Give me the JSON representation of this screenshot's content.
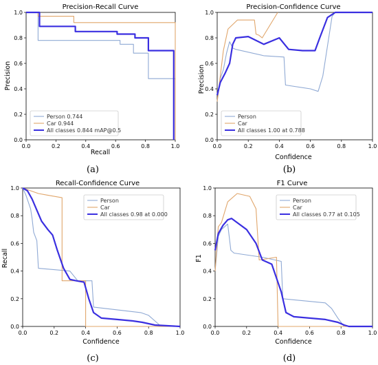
{
  "colors": {
    "person": "#8fa9d4",
    "car": "#e0a56a",
    "all": "#3a2fe0"
  },
  "chart_data": [
    {
      "type": "line",
      "title": "Precision-Recall Curve",
      "xlabel": "Recall",
      "ylabel": "Precision",
      "caption": "(a)",
      "xlim": [
        0,
        1
      ],
      "ylim": [
        0,
        1
      ],
      "xticks": [
        "0.0",
        "0.2",
        "0.4",
        "0.6",
        "0.8",
        "1.0"
      ],
      "yticks": [
        "0.0",
        "0.2",
        "0.4",
        "0.6",
        "0.8",
        "1.0"
      ],
      "legend_position": "bottom-left",
      "series": [
        {
          "name": "Person 0.744",
          "key": "person",
          "x": [
            0,
            0.08,
            0.08,
            0.33,
            0.33,
            0.63,
            0.63,
            0.72,
            0.72,
            0.82,
            0.82,
            1.0,
            1.0
          ],
          "y": [
            1.0,
            1.0,
            0.78,
            0.78,
            0.78,
            0.78,
            0.75,
            0.75,
            0.68,
            0.68,
            0.48,
            0.48,
            0.0
          ]
        },
        {
          "name": "Car 0.944",
          "key": "car",
          "x": [
            0,
            0.08,
            0.08,
            0.32,
            0.32,
            1.0,
            1.0
          ],
          "y": [
            1.0,
            1.0,
            0.97,
            0.97,
            0.92,
            0.92,
            0.0
          ]
        },
        {
          "name": "All classes 0.844 mAP@0.5",
          "key": "all",
          "x": [
            0,
            0.09,
            0.09,
            0.33,
            0.33,
            0.61,
            0.61,
            0.73,
            0.73,
            0.82,
            0.82,
            0.99,
            0.99
          ],
          "y": [
            1.0,
            1.0,
            0.89,
            0.89,
            0.85,
            0.85,
            0.83,
            0.83,
            0.8,
            0.8,
            0.7,
            0.7,
            0.0
          ]
        }
      ]
    },
    {
      "type": "line",
      "title": "Precision-Confidence Curve",
      "xlabel": "Confidence",
      "ylabel": "Precision",
      "caption": "(b)",
      "xlim": [
        0,
        1
      ],
      "ylim": [
        0,
        1
      ],
      "xticks": [
        "0.0",
        "0.2",
        "0.4",
        "0.6",
        "0.8",
        "1.0"
      ],
      "yticks": [
        "0.0",
        "0.2",
        "0.4",
        "0.6",
        "0.8",
        "1.0"
      ],
      "legend_position": "bottom-left",
      "series": [
        {
          "name": "Person",
          "key": "person",
          "x": [
            0,
            0.02,
            0.04,
            0.06,
            0.08,
            0.1,
            0.12,
            0.3,
            0.43,
            0.44,
            0.6,
            0.65,
            0.68,
            0.74,
            0.76,
            1.0
          ],
          "y": [
            0.3,
            0.48,
            0.55,
            0.68,
            0.77,
            0.72,
            0.71,
            0.66,
            0.65,
            0.43,
            0.4,
            0.38,
            0.5,
            0.97,
            1.0,
            1.0
          ]
        },
        {
          "name": "Car",
          "key": "car",
          "x": [
            0,
            0.02,
            0.04,
            0.07,
            0.13,
            0.24,
            0.25,
            0.27,
            0.29,
            0.39
          ],
          "y": [
            0.3,
            0.5,
            0.7,
            0.87,
            0.94,
            0.94,
            0.83,
            0.82,
            0.8,
            1.0
          ]
        },
        {
          "name": "All classes 1.00 at 0.788",
          "key": "all",
          "x": [
            0,
            0.02,
            0.05,
            0.08,
            0.1,
            0.12,
            0.2,
            0.3,
            0.4,
            0.46,
            0.55,
            0.63,
            0.66,
            0.71,
            0.76,
            0.8,
            1.0
          ],
          "y": [
            0.35,
            0.45,
            0.52,
            0.6,
            0.75,
            0.8,
            0.81,
            0.75,
            0.8,
            0.71,
            0.7,
            0.7,
            0.8,
            0.96,
            1.0,
            1.0,
            1.0
          ]
        }
      ]
    },
    {
      "type": "line",
      "title": "Recall-Confidence Curve",
      "xlabel": "Confidence",
      "ylabel": "Recall",
      "caption": "(c)",
      "xlim": [
        0,
        1
      ],
      "ylim": [
        0,
        1
      ],
      "xticks": [
        "0.0",
        "0.2",
        "0.4",
        "0.6",
        "0.8",
        "1.0"
      ],
      "yticks": [
        "0.0",
        "0.2",
        "0.4",
        "0.6",
        "0.8",
        "1.0"
      ],
      "legend_position": "top-right",
      "series": [
        {
          "name": "Person",
          "key": "person",
          "x": [
            0,
            0.02,
            0.05,
            0.06,
            0.07,
            0.09,
            0.1,
            0.3,
            0.35,
            0.44,
            0.45,
            0.75,
            0.8,
            0.84,
            0.88,
            1.0
          ],
          "y": [
            1.0,
            0.95,
            0.85,
            0.78,
            0.68,
            0.62,
            0.42,
            0.4,
            0.33,
            0.33,
            0.14,
            0.1,
            0.08,
            0.04,
            0.0,
            0.0
          ]
        },
        {
          "name": "Car",
          "key": "car",
          "x": [
            0,
            0.05,
            0.1,
            0.15,
            0.2,
            0.25,
            0.25,
            0.4,
            0.4,
            1.0
          ],
          "y": [
            1.0,
            0.98,
            0.96,
            0.95,
            0.94,
            0.93,
            0.33,
            0.33,
            0.0,
            0.0
          ]
        },
        {
          "name": "All classes 0.98 at 0.000",
          "key": "all",
          "x": [
            0,
            0.03,
            0.06,
            0.09,
            0.12,
            0.16,
            0.19,
            0.22,
            0.26,
            0.3,
            0.34,
            0.39,
            0.42,
            0.45,
            0.5,
            0.6,
            0.7,
            0.76,
            0.8,
            0.84,
            1.0
          ],
          "y": [
            1.0,
            0.98,
            0.92,
            0.84,
            0.76,
            0.7,
            0.66,
            0.55,
            0.42,
            0.34,
            0.33,
            0.32,
            0.2,
            0.1,
            0.06,
            0.05,
            0.04,
            0.03,
            0.02,
            0.01,
            0.0
          ]
        }
      ]
    },
    {
      "type": "line",
      "title": "F1 Curve",
      "xlabel": "Confidence",
      "ylabel": "F1",
      "caption": "(d)",
      "xlim": [
        0,
        1
      ],
      "ylim": [
        0,
        1
      ],
      "xticks": [
        "0.0",
        "0.2",
        "0.4",
        "0.6",
        "0.8",
        "1.0"
      ],
      "yticks": [
        "0.0",
        "0.2",
        "0.4",
        "0.6",
        "0.8",
        "1.0"
      ],
      "legend_position": "top-right",
      "series": [
        {
          "name": "Person",
          "key": "person",
          "x": [
            0,
            0.02,
            0.04,
            0.06,
            0.08,
            0.1,
            0.12,
            0.3,
            0.42,
            0.43,
            0.7,
            0.74,
            0.78,
            0.82,
            1.0
          ],
          "y": [
            0.4,
            0.65,
            0.7,
            0.72,
            0.74,
            0.55,
            0.53,
            0.5,
            0.47,
            0.2,
            0.17,
            0.13,
            0.06,
            0.0,
            0.0
          ]
        },
        {
          "name": "Car",
          "key": "car",
          "x": [
            0,
            0.02,
            0.04,
            0.08,
            0.14,
            0.22,
            0.26,
            0.28,
            0.39,
            0.4,
            1.0
          ],
          "y": [
            0.4,
            0.72,
            0.75,
            0.9,
            0.96,
            0.94,
            0.85,
            0.48,
            0.5,
            0.0,
            0.0
          ]
        },
        {
          "name": "All classes 0.77 at 0.105",
          "key": "all",
          "x": [
            0,
            0.02,
            0.05,
            0.08,
            0.105,
            0.14,
            0.2,
            0.26,
            0.3,
            0.36,
            0.42,
            0.45,
            0.5,
            0.6,
            0.7,
            0.78,
            0.82,
            0.85,
            1.0
          ],
          "y": [
            0.55,
            0.67,
            0.73,
            0.77,
            0.78,
            0.75,
            0.7,
            0.6,
            0.48,
            0.45,
            0.25,
            0.1,
            0.07,
            0.06,
            0.05,
            0.03,
            0.01,
            0.0,
            0.0
          ]
        }
      ]
    }
  ]
}
